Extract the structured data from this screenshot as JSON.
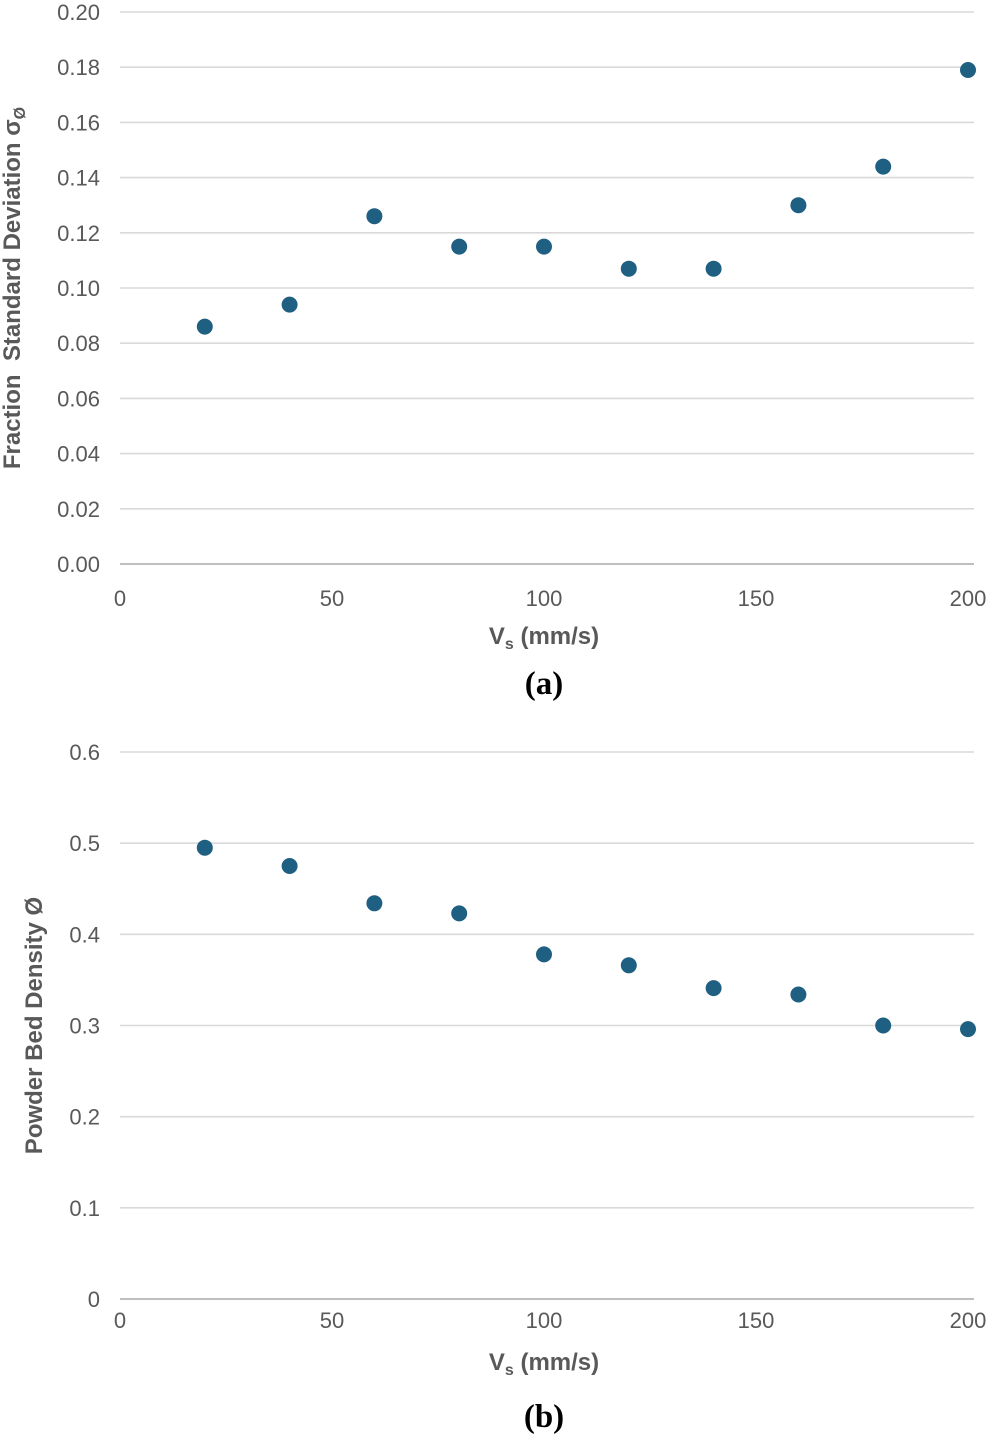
{
  "page": {
    "background": "#FFFFFF"
  },
  "colors": {
    "point": "#1F6082",
    "gridline": "#D9D9D9",
    "axis_line": "#BFBFBF",
    "text": "#595959",
    "caption": "#000000"
  },
  "chart_data": [
    {
      "type": "scatter",
      "panel": "a",
      "caption": "(a)",
      "title": "",
      "xlabel": "Vs (mm/s)",
      "xlabel_parts": [
        {
          "t": "V"
        },
        {
          "t": "s",
          "sub": true
        },
        {
          "t": " (mm/s)"
        }
      ],
      "ylabel": "Fraction Standard Deviation σØ",
      "ylabel_parts": [
        {
          "t": "Fraction  Standard Deviation σ"
        },
        {
          "t": "Ø",
          "sub": true
        }
      ],
      "x": [
        20,
        40,
        60,
        80,
        100,
        120,
        140,
        160,
        180,
        200
      ],
      "y": [
        0.086,
        0.094,
        0.126,
        0.115,
        0.115,
        0.107,
        0.107,
        0.13,
        0.144,
        0.179
      ],
      "xlim": [
        0,
        200
      ],
      "ylim": [
        0,
        0.2
      ],
      "xticks": [
        {
          "v": 0,
          "label": "0"
        },
        {
          "v": 50,
          "label": "50"
        },
        {
          "v": 100,
          "label": "100"
        },
        {
          "v": 150,
          "label": "150"
        },
        {
          "v": 200,
          "label": "200"
        }
      ],
      "yticks": [
        {
          "v": 0.0,
          "label": "0.00"
        },
        {
          "v": 0.02,
          "label": "0.02"
        },
        {
          "v": 0.04,
          "label": "0.04"
        },
        {
          "v": 0.06,
          "label": "0.06"
        },
        {
          "v": 0.08,
          "label": "0.08"
        },
        {
          "v": 0.1,
          "label": "0.10"
        },
        {
          "v": 0.12,
          "label": "0.12"
        },
        {
          "v": 0.14,
          "label": "0.14"
        },
        {
          "v": 0.16,
          "label": "0.16"
        },
        {
          "v": 0.18,
          "label": "0.18"
        },
        {
          "v": 0.2,
          "label": "0.20"
        }
      ],
      "grid": true,
      "legend": false,
      "point_color": "#1F6082"
    },
    {
      "type": "scatter",
      "panel": "b",
      "caption": "(b)",
      "title": "",
      "xlabel": "Vs (mm/s)",
      "xlabel_parts": [
        {
          "t": "V"
        },
        {
          "t": "s",
          "sub": true
        },
        {
          "t": " (mm/s)"
        }
      ],
      "ylabel": "Powder Bed Density Ø",
      "ylabel_parts": [
        {
          "t": "Powder Bed Density Ø"
        }
      ],
      "x": [
        20,
        40,
        60,
        80,
        100,
        120,
        140,
        160,
        180,
        200
      ],
      "y": [
        0.495,
        0.475,
        0.434,
        0.423,
        0.378,
        0.366,
        0.341,
        0.334,
        0.3,
        0.296
      ],
      "xlim": [
        0,
        200
      ],
      "ylim": [
        0,
        0.6
      ],
      "xticks": [
        {
          "v": 0,
          "label": "0"
        },
        {
          "v": 50,
          "label": "50"
        },
        {
          "v": 100,
          "label": "100"
        },
        {
          "v": 150,
          "label": "150"
        },
        {
          "v": 200,
          "label": "200"
        }
      ],
      "yticks": [
        {
          "v": 0.0,
          "label": "0"
        },
        {
          "v": 0.1,
          "label": "0.1"
        },
        {
          "v": 0.2,
          "label": "0.2"
        },
        {
          "v": 0.3,
          "label": "0.3"
        },
        {
          "v": 0.4,
          "label": "0.4"
        },
        {
          "v": 0.5,
          "label": "0.5"
        },
        {
          "v": 0.6,
          "label": "0.6"
        }
      ],
      "grid": true,
      "legend": false,
      "point_color": "#1F6082"
    }
  ]
}
